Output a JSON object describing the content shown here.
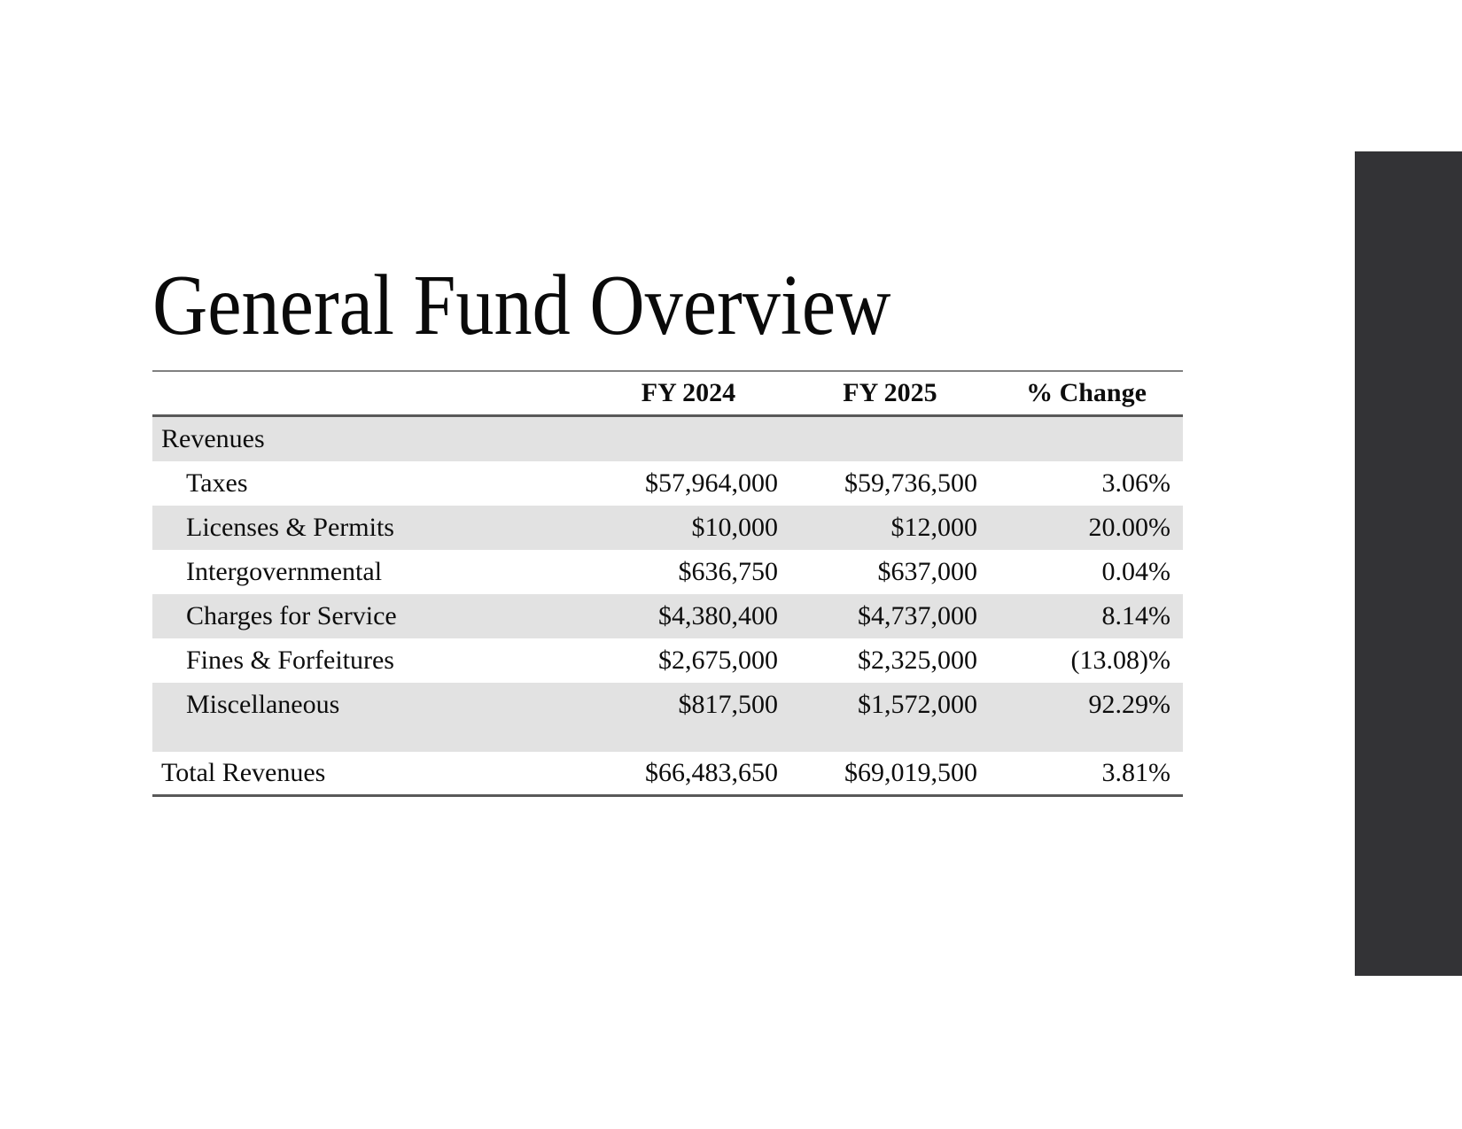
{
  "slide": {
    "title": "General Fund Overview"
  },
  "table": {
    "columns": [
      "",
      "FY 2024",
      "FY 2025",
      "% Change"
    ],
    "section_label": "Revenues",
    "rows": [
      {
        "label": "Taxes",
        "fy2024": "$57,964,000",
        "fy2025": "$59,736,500",
        "change": "3.06%"
      },
      {
        "label": "Licenses & Permits",
        "fy2024": "$10,000",
        "fy2025": "$12,000",
        "change": "20.00%"
      },
      {
        "label": "Intergovernmental",
        "fy2024": "$636,750",
        "fy2025": "$637,000",
        "change": "0.04%"
      },
      {
        "label": "Charges for Service",
        "fy2024": "$4,380,400",
        "fy2025": "$4,737,000",
        "change": "8.14%"
      },
      {
        "label": "Fines & Forfeitures",
        "fy2024": "$2,675,000",
        "fy2025": "$2,325,000",
        "change": "(13.08)%"
      },
      {
        "label": "Miscellaneous",
        "fy2024": "$817,500",
        "fy2025": "$1,572,000",
        "change": "92.29%"
      }
    ],
    "total": {
      "label": "Total Revenues",
      "fy2024": "$66,483,650",
      "fy2025": "$69,019,500",
      "change": "3.81%"
    }
  },
  "colors": {
    "stripe": "#e2e2e2",
    "rule_top": "#808080",
    "rule_heavy": "#595959",
    "accent_bar": "#333336"
  }
}
